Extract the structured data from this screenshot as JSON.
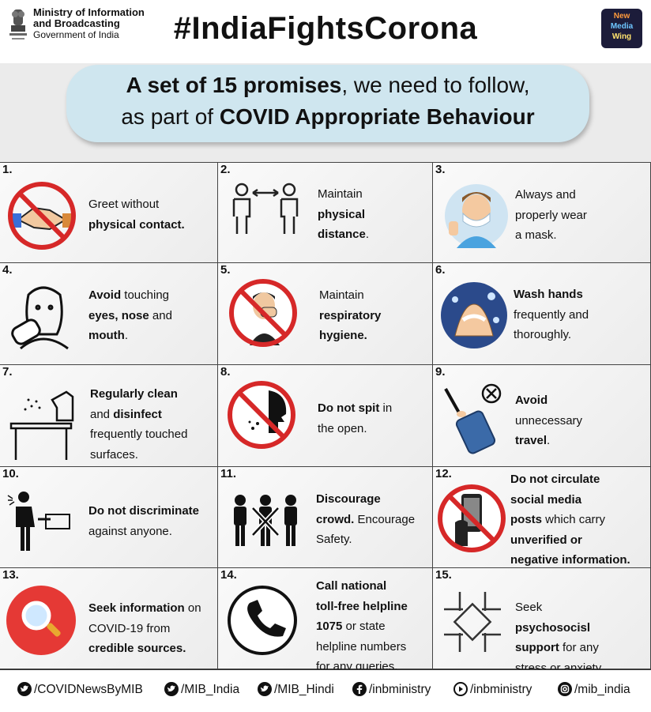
{
  "header": {
    "ministry_line1": "Ministry of Information",
    "ministry_line2": "and Broadcasting",
    "ministry_line3": "Government of India",
    "hashtag": "#IndiaFightsCorona",
    "logo": {
      "line1": "New",
      "line2": "Media",
      "line3": "Wing"
    }
  },
  "banner": {
    "line1_bold": "A set of 15 promises",
    "line1_rest": ", we need to follow,",
    "line2_plain": "as part of ",
    "line2_bold": "COVID Appropriate Behaviour"
  },
  "promises": [
    {
      "num": "1.",
      "icon": "no-handshake-icon",
      "lines": [
        [
          "Greet without",
          ""
        ],
        [
          "",
          "physical contact."
        ]
      ]
    },
    {
      "num": "2.",
      "icon": "physical-distance-icon",
      "lines": [
        [
          "Maintain",
          ""
        ],
        [
          "",
          "physical"
        ],
        [
          "",
          "distance"
        ],
        [
          ".",
          ""
        ]
      ]
    },
    {
      "num": "3.",
      "icon": "masked-person-icon",
      "lines": [
        [
          "Always and",
          ""
        ],
        [
          "properly wear",
          ""
        ],
        [
          "a mask.",
          ""
        ]
      ]
    },
    {
      "num": "4.",
      "icon": "touch-face-icon",
      "lines": [
        [
          "",
          "Avoid"
        ],
        [
          " touching",
          ""
        ],
        [
          "",
          "eyes, nose"
        ],
        [
          " and",
          ""
        ],
        [
          "",
          "mouth"
        ],
        [
          ".",
          ""
        ]
      ]
    },
    {
      "num": "5.",
      "icon": "cough-cover-icon",
      "lines": [
        [
          "Maintain",
          ""
        ],
        [
          "",
          "respiratory"
        ],
        [
          "",
          "hygiene."
        ]
      ]
    },
    {
      "num": "6.",
      "icon": "hand-wash-icon",
      "lines": [
        [
          "",
          "Wash hands"
        ],
        [
          "frequently and",
          ""
        ],
        [
          "thoroughly.",
          ""
        ]
      ]
    },
    {
      "num": "7.",
      "icon": "disinfect-spray-icon",
      "lines": [
        [
          "",
          "Regularly clean"
        ],
        [
          "and ",
          ""
        ],
        [
          "",
          "disinfect"
        ],
        [
          "frequently touched",
          ""
        ],
        [
          "surfaces.",
          ""
        ]
      ]
    },
    {
      "num": "8.",
      "icon": "no-spitting-icon",
      "lines": [
        [
          "",
          "Do not spit"
        ],
        [
          " in",
          ""
        ],
        [
          "the open.",
          ""
        ]
      ]
    },
    {
      "num": "9.",
      "icon": "no-travel-icon",
      "lines": [
        [
          "",
          "Avoid"
        ],
        [
          "unnecessary",
          ""
        ],
        [
          "",
          "travel"
        ],
        [
          ".",
          ""
        ]
      ]
    },
    {
      "num": "10.",
      "icon": "discrimination-icon",
      "lines": [
        [
          "",
          "Do not discriminate"
        ],
        [
          "against anyone.",
          ""
        ]
      ]
    },
    {
      "num": "11.",
      "icon": "no-crowd-icon",
      "lines": [
        [
          "",
          "Discourage"
        ],
        [
          "",
          "crowd."
        ],
        [
          " Encourage",
          ""
        ],
        [
          "Safety.",
          ""
        ]
      ]
    },
    {
      "num": "12.",
      "icon": "no-phone-forward-icon",
      "lines": [
        [
          "",
          "Do not circulate"
        ],
        [
          "",
          "social media"
        ],
        [
          "",
          "posts"
        ],
        [
          " which carry",
          ""
        ],
        [
          "",
          "unverified or"
        ],
        [
          "",
          "negative information."
        ]
      ]
    },
    {
      "num": "13.",
      "icon": "search-info-icon",
      "lines": [
        [
          "",
          "Seek information"
        ],
        [
          " on",
          ""
        ],
        [
          "COVID-19 from",
          ""
        ],
        [
          "",
          "credible sources."
        ]
      ]
    },
    {
      "num": "14.",
      "icon": "phone-call-icon",
      "lines": [
        [
          "",
          "Call national"
        ],
        [
          "",
          "toll-free helpline"
        ],
        [
          "",
          "1075"
        ],
        [
          " or state",
          ""
        ],
        [
          "helpline numbers",
          ""
        ],
        [
          "for any queries.",
          ""
        ]
      ]
    },
    {
      "num": "15.",
      "icon": "joined-hands-icon",
      "lines": [
        [
          "Seek ",
          ""
        ],
        [
          "",
          "psychosocisl"
        ],
        [
          "",
          "support"
        ],
        [
          " for any",
          ""
        ],
        [
          "stress or anxiety.",
          ""
        ]
      ]
    }
  ],
  "footer": [
    {
      "icon": "twitter-icon",
      "label": "/COVIDNewsByMIB"
    },
    {
      "icon": "twitter-icon",
      "label": "/MIB_India"
    },
    {
      "icon": "twitter-icon",
      "label": "/MIB_Hindi"
    },
    {
      "icon": "facebook-icon",
      "label": "/inbministry"
    },
    {
      "icon": "youtube-icon",
      "label": "/inbministry"
    },
    {
      "icon": "instagram-icon",
      "label": "/mib_india"
    }
  ]
}
